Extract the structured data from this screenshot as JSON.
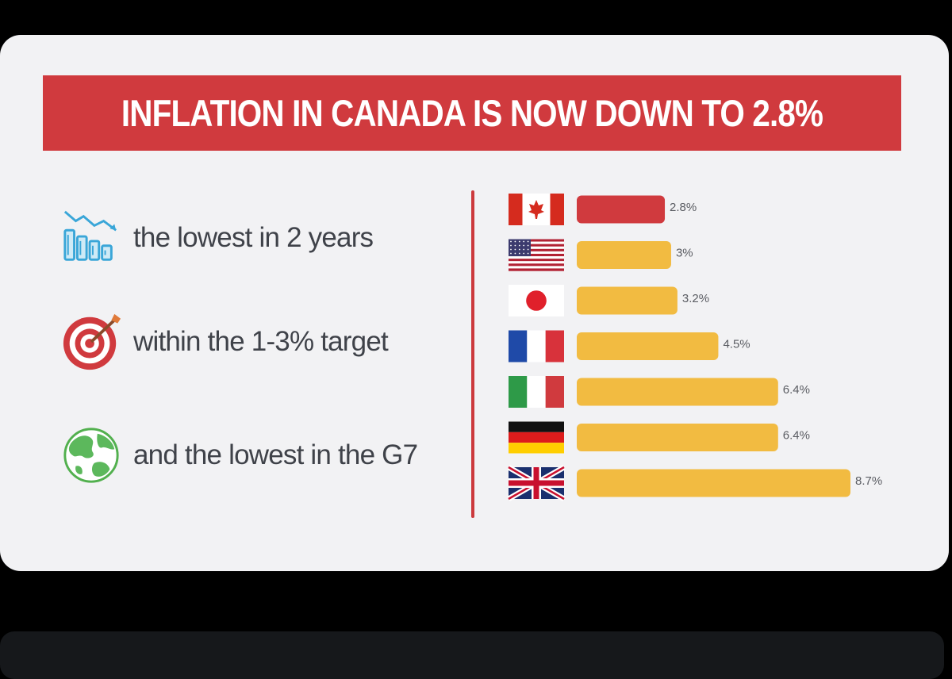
{
  "header": {
    "title": "INFLATION IN CANADA IS NOW DOWN TO 2.8%"
  },
  "facts": [
    {
      "icon": "declining-chart-icon",
      "text": "the lowest in 2 years"
    },
    {
      "icon": "target-icon",
      "text": "within the 1-3% target"
    },
    {
      "icon": "globe-icon",
      "text": "and the lowest in the G7"
    }
  ],
  "colors": {
    "highlight": "#d03a3e",
    "bar": "#f2bb41",
    "divider": "#cc3a3d",
    "text": "#3f4249",
    "background": "#f2f2f4"
  },
  "chart_data": {
    "type": "bar",
    "orientation": "horizontal",
    "categories": [
      "Canada",
      "United States",
      "Japan",
      "France",
      "Italy",
      "Germany",
      "United Kingdom"
    ],
    "category_icons": [
      "canada-flag-icon",
      "us-flag-icon",
      "japan-flag-icon",
      "france-flag-icon",
      "italy-flag-icon",
      "germany-flag-icon",
      "uk-flag-icon"
    ],
    "values": [
      2.8,
      3,
      3.2,
      4.5,
      6.4,
      6.4,
      8.7
    ],
    "labels": [
      "2.8%",
      "3%",
      "3.2%",
      "4.5%",
      "6.4%",
      "6.4%",
      "8.7%"
    ],
    "highlight_index": 0,
    "xlim": [
      0,
      8.7
    ],
    "grid": false,
    "legend": "none"
  }
}
